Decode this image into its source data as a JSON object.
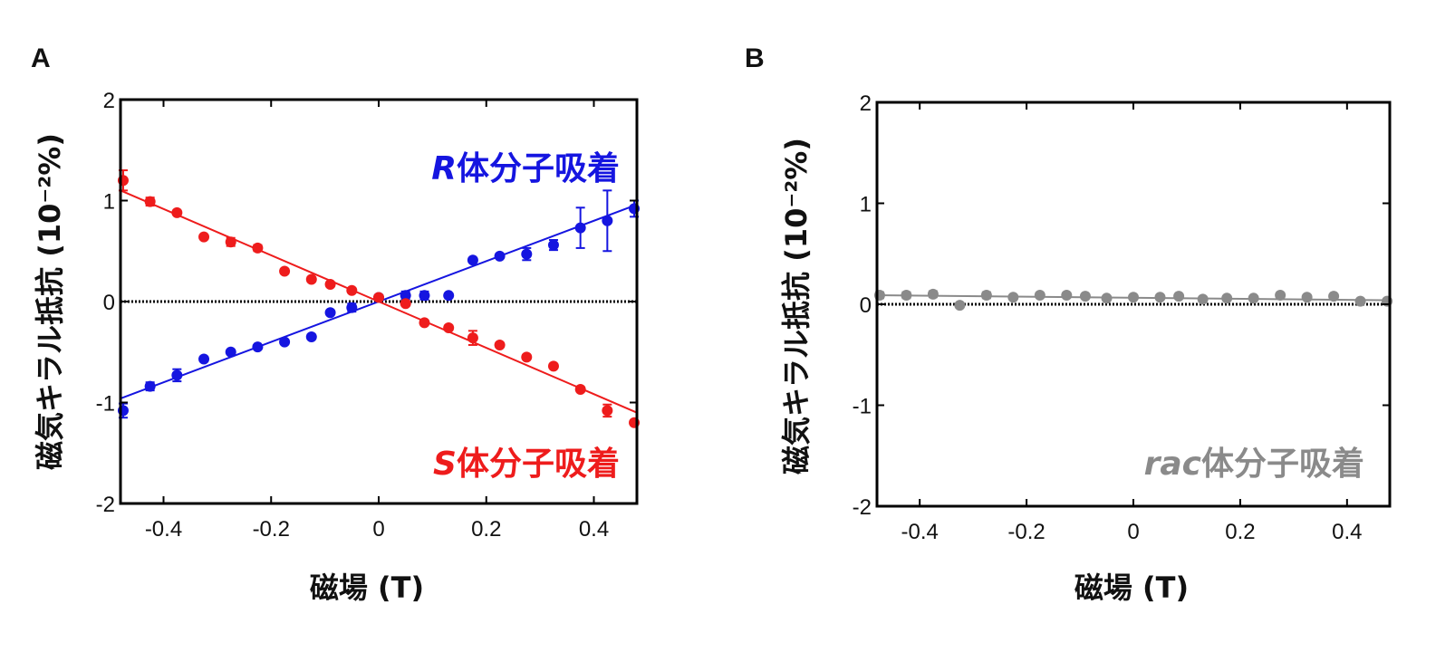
{
  "colors": {
    "R": "#1515e0",
    "S": "#ee1c1c",
    "rac": "#8a8a8a",
    "axis": "#000000"
  },
  "chart_data": [
    {
      "panel": "A",
      "type": "scatter",
      "xlabel": "磁場 (T)",
      "ylabel": "磁気キラル抵抗 (10⁻²%)",
      "xlim": [
        -0.48,
        0.48
      ],
      "ylim": [
        -2,
        2
      ],
      "xticks": [
        -0.4,
        -0.2,
        0,
        0.2,
        0.4
      ],
      "xtick_labels": [
        "-0.4",
        "-0.2",
        "0",
        "0.2",
        "0.4"
      ],
      "yticks": [
        -2,
        -1,
        0,
        1,
        2
      ],
      "ytick_labels": [
        "-2",
        "-1",
        "0",
        "1",
        "2"
      ],
      "zero_line": true,
      "series": [
        {
          "name": "R",
          "label_italic": "R",
          "label_rest": "体分子吸着",
          "label_position": "upper-right",
          "color": "R",
          "x": [
            -0.475,
            -0.425,
            -0.375,
            -0.325,
            -0.275,
            -0.225,
            -0.175,
            -0.125,
            -0.09,
            -0.05,
            0.0,
            0.05,
            0.085,
            0.13,
            0.175,
            0.225,
            0.275,
            0.325,
            0.375,
            0.425,
            0.475
          ],
          "y": [
            -1.08,
            -0.84,
            -0.73,
            -0.57,
            -0.5,
            -0.45,
            -0.4,
            -0.35,
            -0.11,
            -0.06,
            0.04,
            0.06,
            0.06,
            0.06,
            0.41,
            0.45,
            0.47,
            0.56,
            0.73,
            0.8,
            0.92
          ],
          "err": [
            0.07,
            0.04,
            0.06,
            0.02,
            0.02,
            0.02,
            0.02,
            0.02,
            0.02,
            0.04,
            0.02,
            0.04,
            0.04,
            0.02,
            0.02,
            0.02,
            0.06,
            0.05,
            0.2,
            0.3,
            0.08
          ],
          "fit": {
            "x": [
              -0.48,
              0.48
            ],
            "y": [
              -0.96,
              0.96
            ]
          }
        },
        {
          "name": "S",
          "label_italic": "S",
          "label_rest": "体分子吸着",
          "label_position": "lower-right",
          "color": "S",
          "x": [
            -0.475,
            -0.425,
            -0.375,
            -0.325,
            -0.275,
            -0.225,
            -0.175,
            -0.125,
            -0.09,
            -0.05,
            0.0,
            0.05,
            0.085,
            0.13,
            0.175,
            0.225,
            0.275,
            0.325,
            0.375,
            0.425,
            0.475
          ],
          "y": [
            1.2,
            0.99,
            0.88,
            0.64,
            0.59,
            0.53,
            0.3,
            0.22,
            0.17,
            0.11,
            0.04,
            -0.02,
            -0.21,
            -0.26,
            -0.36,
            -0.43,
            -0.55,
            -0.64,
            -0.87,
            -1.08,
            -1.2
          ],
          "err": [
            0.1,
            0.04,
            0.02,
            0.02,
            0.04,
            0.03,
            0.02,
            0.02,
            0.02,
            0.02,
            0.02,
            0.02,
            0.02,
            0.02,
            0.07,
            0.02,
            0.02,
            0.02,
            0.02,
            0.06,
            0.02
          ],
          "fit": {
            "x": [
              -0.48,
              0.48
            ],
            "y": [
              1.1,
              -1.1
            ]
          }
        }
      ]
    },
    {
      "panel": "B",
      "type": "scatter",
      "xlabel": "磁場 (T)",
      "ylabel": "磁気キラル抵抗 (10⁻²%)",
      "xlim": [
        -0.48,
        0.48
      ],
      "ylim": [
        -2,
        2
      ],
      "xticks": [
        -0.4,
        -0.2,
        0,
        0.2,
        0.4
      ],
      "xtick_labels": [
        "-0.4",
        "-0.2",
        "0",
        "0.2",
        "0.4"
      ],
      "yticks": [
        -2,
        -1,
        0,
        1,
        2
      ],
      "ytick_labels": [
        "-2",
        "-1",
        "0",
        "1",
        "2"
      ],
      "zero_line": true,
      "series": [
        {
          "name": "rac",
          "label_italic": "rac",
          "label_rest": "体分子吸着",
          "label_position": "lower-right",
          "color": "rac",
          "x": [
            -0.475,
            -0.425,
            -0.375,
            -0.325,
            -0.275,
            -0.225,
            -0.175,
            -0.125,
            -0.09,
            -0.05,
            0.0,
            0.05,
            0.085,
            0.13,
            0.175,
            0.225,
            0.275,
            0.325,
            0.375,
            0.425,
            0.475
          ],
          "y": [
            0.09,
            0.09,
            0.1,
            -0.01,
            0.09,
            0.07,
            0.09,
            0.09,
            0.08,
            0.06,
            0.07,
            0.07,
            0.08,
            0.05,
            0.06,
            0.06,
            0.09,
            0.07,
            0.08,
            0.03,
            0.03
          ],
          "err": [
            0.03,
            0.03,
            0.03,
            0.02,
            0.03,
            0.02,
            0.02,
            0.02,
            0.02,
            0.02,
            0.02,
            0.02,
            0.02,
            0.02,
            0.02,
            0.02,
            0.02,
            0.02,
            0.02,
            0.02,
            0.02
          ],
          "fit": {
            "x": [
              -0.48,
              0.48
            ],
            "y": [
              0.09,
              0.04
            ]
          }
        }
      ]
    }
  ]
}
